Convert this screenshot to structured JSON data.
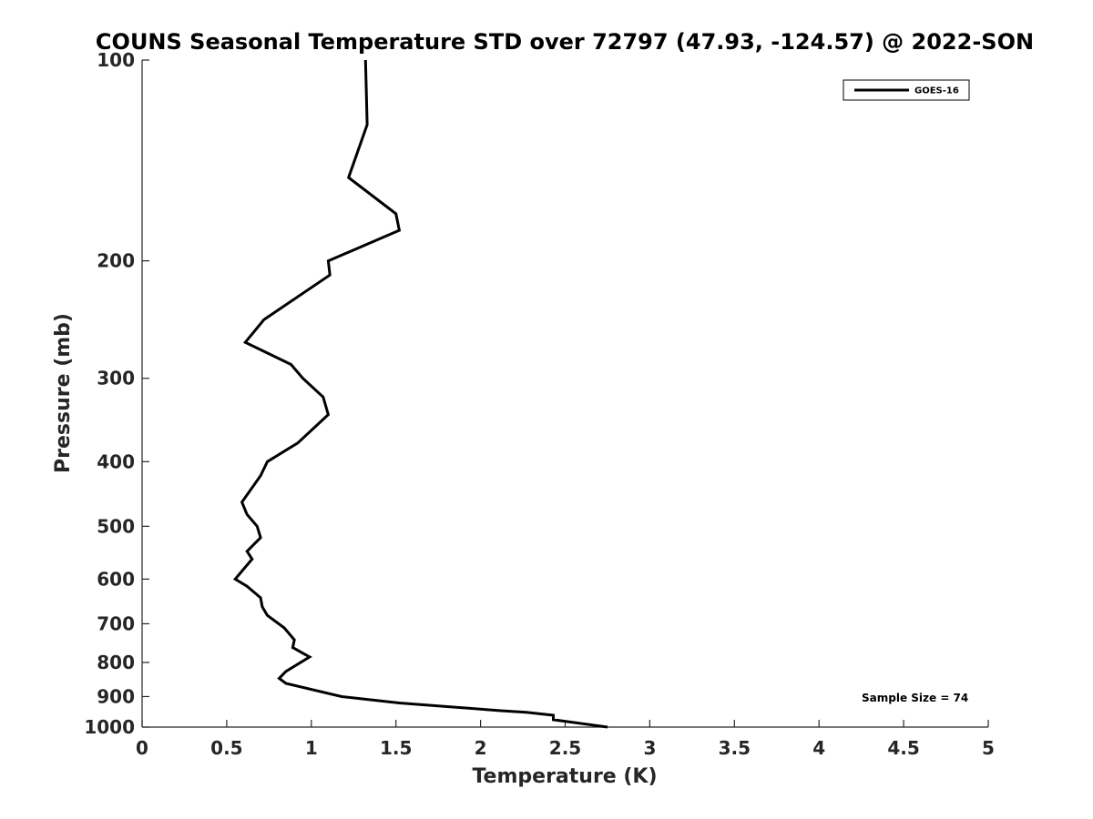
{
  "chart_data": {
    "type": "line",
    "title": "COUNS Seasonal Temperature STD over 72797 (47.93, -124.57) @ 2022-SON",
    "xlabel": "Temperature (K)",
    "ylabel": "Pressure (mb)",
    "xlim": [
      0,
      5
    ],
    "ylim": [
      100,
      1000
    ],
    "y_scale": "log",
    "y_reversed": true,
    "grid": false,
    "legend_position": "top-right",
    "x_ticks": [
      0,
      0.5,
      1,
      1.5,
      2,
      2.5,
      3,
      3.5,
      4,
      4.5,
      5
    ],
    "x_tick_labels": [
      "0",
      "0.5",
      "1",
      "1.5",
      "2",
      "2.5",
      "3",
      "3.5",
      "4",
      "4.5",
      "5"
    ],
    "y_ticks": [
      100,
      200,
      300,
      400,
      500,
      600,
      700,
      800,
      900,
      1000
    ],
    "y_tick_labels": [
      "100",
      "200",
      "300",
      "400",
      "500",
      "600",
      "700",
      "800",
      "900",
      "1000"
    ],
    "series": [
      {
        "name": "GOES-16",
        "color": "#000000",
        "x": [
          1.32,
          1.33,
          1.22,
          1.5,
          1.52,
          1.1,
          1.11,
          0.72,
          0.61,
          0.88,
          0.95,
          1.07,
          1.1,
          0.92,
          0.74,
          0.7,
          0.59,
          0.62,
          0.68,
          0.69,
          0.7,
          0.62,
          0.65,
          0.55,
          0.62,
          0.7,
          0.71,
          0.74,
          0.84,
          0.9,
          0.89,
          0.99,
          0.85,
          0.81,
          0.85,
          1.18,
          1.52,
          2.12,
          2.27,
          2.43,
          2.43,
          2.75
        ],
        "y": [
          100,
          125,
          150,
          170,
          180,
          200,
          210,
          245,
          265,
          286,
          300,
          320,
          340,
          375,
          400,
          420,
          460,
          480,
          500,
          510,
          520,
          545,
          560,
          600,
          615,
          640,
          660,
          680,
          710,
          740,
          760,
          785,
          825,
          845,
          860,
          900,
          920,
          945,
          950,
          960,
          975,
          1000
        ]
      }
    ],
    "annotations": [
      "Sample Size = 74"
    ]
  }
}
